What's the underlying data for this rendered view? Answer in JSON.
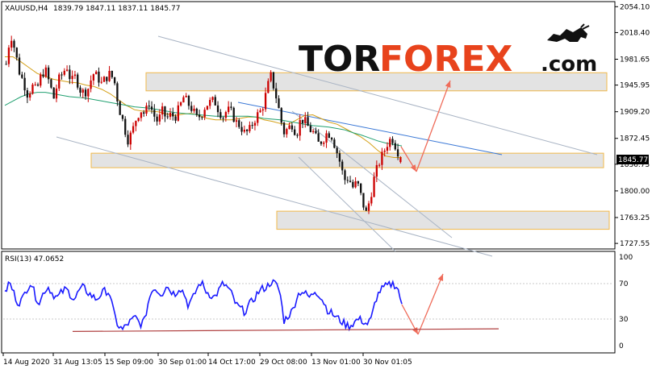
{
  "header": {
    "symbol": "XAUUSD,H4",
    "ohlc": "1839.79 1847.11 1837.11 1845.77"
  },
  "logo": {
    "part1": "TOR",
    "part2": "FOREX",
    "part3": ".com",
    "icon": "bull-icon"
  },
  "current_price": "1845.77",
  "rsi_label": "RSI(13) 47.0652",
  "colors": {
    "bull": "#cc0000",
    "bear": "#111111",
    "ma_fast": "#d4a017",
    "ma_slow": "#20a070",
    "rsi_line": "#1a1aff",
    "arrow": "#ef6c5a",
    "channel": "#a9b4c4",
    "trendline_blue": "#3a78d6",
    "rsi_support": "#b04040"
  },
  "chart_data": [
    {
      "type": "candlestick",
      "title": "",
      "x_ticks": [
        "14 Aug 2020",
        "31 Aug 13:05",
        "15 Sep 09:00",
        "30 Sep 01:00",
        "14 Oct 17:00",
        "29 Oct 08:00",
        "13 Nov 01:00",
        "30 Nov 01:05"
      ],
      "y_ticks": [
        2054.1,
        2018.4,
        1981.65,
        1945.95,
        1909.2,
        1872.45,
        1836.75,
        1800.0,
        1763.25,
        1727.55
      ],
      "ylim": [
        1721,
        2060
      ],
      "close_path": [
        1975,
        2018,
        1995,
        1965,
        1950,
        1932,
        1945,
        1938,
        1958,
        1968,
        1948,
        1928,
        1952,
        1962,
        1972,
        1950,
        1958,
        1940,
        1935,
        1942,
        1962,
        1958,
        1948,
        1956,
        1962,
        1950,
        1915,
        1895,
        1870,
        1880,
        1900,
        1912,
        1906,
        1922,
        1905,
        1895,
        1910,
        1900,
        1905,
        1902,
        1915,
        1930,
        1920,
        1912,
        1900,
        1905,
        1918,
        1922,
        1925,
        1912,
        1902,
        1912,
        1908,
        1895,
        1890,
        1880,
        1882,
        1895,
        1905,
        1912,
        1935,
        1960,
        1938,
        1910,
        1880,
        1886,
        1892,
        1878,
        1900,
        1895,
        1885,
        1880,
        1865,
        1870,
        1880,
        1878,
        1860,
        1840,
        1815,
        1818,
        1805,
        1812,
        1790,
        1768,
        1790,
        1820,
        1838,
        1852,
        1866,
        1874,
        1860,
        1845.77
      ],
      "ma_fast": [
        1985,
        1985,
        1978,
        1970,
        1962,
        1958,
        1954,
        1952,
        1950,
        1949,
        1946,
        1944,
        1940,
        1934,
        1926,
        1918,
        1912,
        1910,
        1910,
        1909,
        1906,
        1904,
        1906,
        1907,
        1904,
        1900,
        1898,
        1898,
        1898,
        1900,
        1902,
        1902,
        1898,
        1896,
        1893,
        1892,
        1898,
        1904,
        1905,
        1900,
        1895,
        1892,
        1886,
        1880,
        1874,
        1866,
        1856,
        1848,
        1846,
        1846
      ],
      "ma_slow": [
        1918,
        1924,
        1930,
        1934,
        1936,
        1936,
        1934,
        1932,
        1930,
        1929,
        1928,
        1926,
        1924,
        1922,
        1920,
        1918,
        1916,
        1915,
        1914,
        1912,
        1910,
        1908,
        1907,
        1906,
        1905,
        1904,
        1903,
        1903,
        1903,
        1903,
        1903,
        1902,
        1900,
        1899,
        1898,
        1896,
        1894,
        1892,
        1890,
        1889,
        1888,
        1886,
        1884,
        1880,
        1877,
        1873,
        1869,
        1866,
        1864,
        1862
      ],
      "resistance_zone": [
        1938,
        1963
      ],
      "support_zone": [
        1832,
        1852
      ],
      "lower_zone": [
        1747,
        1772
      ]
    },
    {
      "type": "line",
      "title": "",
      "series_label": "RSI(13)",
      "y_ticks": [
        100,
        70,
        30,
        0
      ],
      "ylim": [
        0,
        100
      ],
      "values": [
        58,
        72,
        60,
        48,
        52,
        64,
        72,
        56,
        48,
        62,
        66,
        58,
        54,
        60,
        64,
        58,
        52,
        62,
        66,
        60,
        56,
        52,
        58,
        62,
        60,
        36,
        22,
        18,
        24,
        28,
        32,
        24,
        28,
        52,
        66,
        62,
        58,
        68,
        62,
        58,
        66,
        60,
        46,
        52,
        64,
        72,
        62,
        58,
        54,
        62,
        70,
        66,
        58,
        46,
        42,
        38,
        46,
        52,
        60,
        64,
        66,
        72,
        70,
        62,
        28,
        34,
        40,
        56,
        62,
        58,
        54,
        62,
        58,
        50,
        40,
        36,
        32,
        28,
        24,
        22,
        26,
        30,
        28,
        24,
        30,
        52,
        62,
        66,
        68,
        70,
        66,
        47.07
      ]
    }
  ]
}
